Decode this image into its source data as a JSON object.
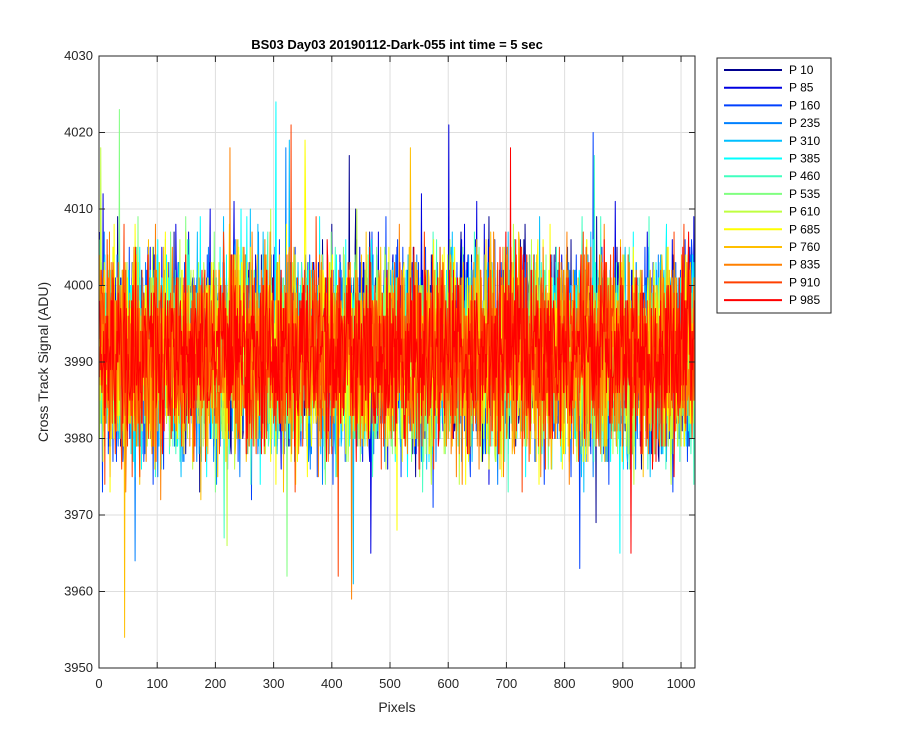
{
  "chart_data": {
    "type": "line",
    "title": "BS03 Day03 20190112-Dark-055 int time = 5 sec",
    "xlabel": "Pixels",
    "ylabel": "Cross Track Signal (ADU)",
    "xlim": [
      0,
      1024
    ],
    "ylim": [
      3950,
      4030
    ],
    "xticks": [
      0,
      100,
      200,
      300,
      400,
      500,
      600,
      700,
      800,
      900,
      1000
    ],
    "yticks": [
      3950,
      3960,
      3970,
      3980,
      3990,
      4000,
      4010,
      4020,
      4030
    ],
    "grid": true,
    "legend_position": "outside-top-right",
    "x_count": 1024,
    "series": [
      {
        "name": "P 10",
        "color": "#00008f",
        "center": 3991,
        "spread": 6.5,
        "min": 3969,
        "max": 4017
      },
      {
        "name": "P 85",
        "color": "#0000e0",
        "center": 3992,
        "spread": 6.5,
        "min": 3965,
        "max": 4021
      },
      {
        "name": "P 160",
        "color": "#0040ff",
        "center": 3991,
        "spread": 6.5,
        "min": 3963,
        "max": 4020
      },
      {
        "name": "P 235",
        "color": "#0080ff",
        "center": 3991,
        "spread": 6.5,
        "min": 3964,
        "max": 4018
      },
      {
        "name": "P 310",
        "color": "#00bfff",
        "center": 3991,
        "spread": 6.5,
        "min": 3961,
        "max": 4019
      },
      {
        "name": "P 385",
        "color": "#00ffff",
        "center": 3992,
        "spread": 6.5,
        "min": 3965,
        "max": 4024
      },
      {
        "name": "P 460",
        "color": "#40ffbf",
        "center": 3991,
        "spread": 6.5,
        "min": 3967,
        "max": 4017
      },
      {
        "name": "P 535",
        "color": "#80ff80",
        "center": 3991,
        "spread": 6.5,
        "min": 3962,
        "max": 4023
      },
      {
        "name": "P 610",
        "color": "#bfff40",
        "center": 3991,
        "spread": 6.5,
        "min": 3966,
        "max": 4018
      },
      {
        "name": "P 685",
        "color": "#ffff00",
        "center": 3991,
        "spread": 6.5,
        "min": 3968,
        "max": 4019
      },
      {
        "name": "P 760",
        "color": "#ffbf00",
        "center": 3991,
        "spread": 6.5,
        "min": 3954,
        "max": 4018
      },
      {
        "name": "P 835",
        "color": "#ff8000",
        "center": 3991,
        "spread": 6.5,
        "min": 3959,
        "max": 4018
      },
      {
        "name": "P 910",
        "color": "#ff4000",
        "center": 3991,
        "spread": 6.5,
        "min": 3962,
        "max": 4021
      },
      {
        "name": "P 985",
        "color": "#ff0000",
        "center": 3991,
        "spread": 6.0,
        "min": 3965,
        "max": 4018
      }
    ]
  }
}
